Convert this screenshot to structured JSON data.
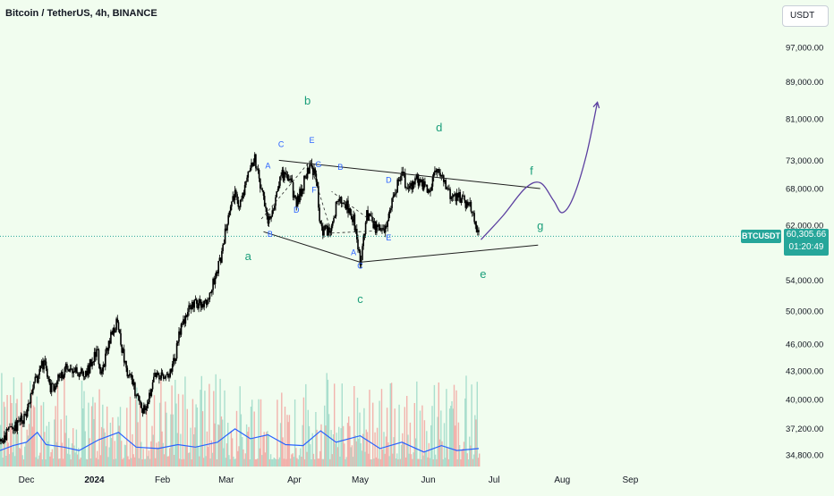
{
  "header": {
    "title": "Bitcoin / TetherUS, 4h, BINANCE",
    "currency": "USDT"
  },
  "price_tag": {
    "symbol": "BTCUSDT",
    "price": "60,305.66",
    "countdown": "01:20:49"
  },
  "colors": {
    "background": "#f1fdef",
    "candle": "#000000",
    "wave_label_green": "#1a9e7a",
    "wave_label_blue": "#2962ff",
    "projection": "#5b3fa0",
    "volume_up": "#9ed9c8",
    "volume_down": "#f2a6a1",
    "volume_ma": "#2962ff",
    "price_line": "#26a69a"
  },
  "chart_data": {
    "type": "candlestick",
    "title": "Bitcoin / TetherUS, 4h, BINANCE",
    "y_scale": "log",
    "ylim": [
      34000,
      103000
    ],
    "y_ticks": [
      "97,000.00",
      "89,000.00",
      "81,000.00",
      "73,000.00",
      "68,000.00",
      "62,000.00",
      "54,000.00",
      "50,000.00",
      "46,000.00",
      "43,000.00",
      "40,000.00",
      "37,200.00",
      "34,800.00"
    ],
    "y_tick_values": [
      97000,
      89000,
      81000,
      73000,
      68000,
      62000,
      54000,
      50000,
      46000,
      43000,
      40000,
      37200,
      34800
    ],
    "x_ticks": [
      "Dec",
      "2024",
      "Feb",
      "Mar",
      "Apr",
      "May",
      "Jun",
      "Jul",
      "Aug",
      "Sep"
    ],
    "x_tick_dates": [
      "2023-12-01",
      "2024-01-01",
      "2024-02-01",
      "2024-03-01",
      "2024-04-01",
      "2024-05-01",
      "2024-06-01",
      "2024-07-01",
      "2024-08-01",
      "2024-09-01"
    ],
    "xlim": [
      "2023-11-19",
      "2024-09-20"
    ],
    "last_price": 60305.66,
    "price_path": [
      [
        "2023-11-19",
        36000
      ],
      [
        "2023-12-01",
        38500
      ],
      [
        "2023-12-05",
        41800
      ],
      [
        "2023-12-09",
        44000
      ],
      [
        "2023-12-12",
        41000
      ],
      [
        "2023-12-20",
        43500
      ],
      [
        "2023-12-28",
        42500
      ],
      [
        "2024-01-02",
        45500
      ],
      [
        "2024-01-04",
        42500
      ],
      [
        "2024-01-08",
        46500
      ],
      [
        "2024-01-11",
        48500
      ],
      [
        "2024-01-16",
        43000
      ],
      [
        "2024-01-23",
        38800
      ],
      [
        "2024-01-29",
        42500
      ],
      [
        "2024-02-05",
        42600
      ],
      [
        "2024-02-09",
        47500
      ],
      [
        "2024-02-13",
        50500
      ],
      [
        "2024-02-22",
        51500
      ],
      [
        "2024-02-28",
        57500
      ],
      [
        "2024-03-01",
        62000
      ],
      [
        "2024-03-05",
        67500
      ],
      [
        "2024-03-07",
        64500
      ],
      [
        "2024-03-11",
        71500
      ],
      [
        "2024-03-14",
        73500
      ],
      [
        "2024-03-17",
        68000
      ],
      [
        "2024-03-20",
        61800
      ],
      [
        "2024-03-26",
        70500
      ],
      [
        "2024-03-30",
        69500
      ],
      [
        "2024-04-02",
        65500
      ],
      [
        "2024-04-08",
        72000
      ],
      [
        "2024-04-11",
        70000
      ],
      [
        "2024-04-13",
        61500
      ],
      [
        "2024-04-17",
        60800
      ],
      [
        "2024-04-20",
        65000
      ],
      [
        "2024-04-23",
        66500
      ],
      [
        "2024-04-28",
        63000
      ],
      [
        "2024-05-01",
        56500
      ],
      [
        "2024-05-04",
        63500
      ],
      [
        "2024-05-08",
        61500
      ],
      [
        "2024-05-12",
        60800
      ],
      [
        "2024-05-15",
        65500
      ],
      [
        "2024-05-20",
        71000
      ],
      [
        "2024-05-23",
        67500
      ],
      [
        "2024-05-27",
        69500
      ],
      [
        "2024-06-01",
        67500
      ],
      [
        "2024-06-05",
        71500
      ],
      [
        "2024-06-07",
        70000
      ],
      [
        "2024-06-11",
        66500
      ],
      [
        "2024-06-15",
        66500
      ],
      [
        "2024-06-20",
        65000
      ],
      [
        "2024-06-24",
        60300
      ]
    ],
    "volume_ma": [
      [
        "2023-11-19",
        0.18
      ],
      [
        "2023-11-25",
        0.28
      ],
      [
        "2023-12-01",
        0.35
      ],
      [
        "2023-12-06",
        0.55
      ],
      [
        "2023-12-10",
        0.3
      ],
      [
        "2023-12-18",
        0.25
      ],
      [
        "2023-12-25",
        0.18
      ],
      [
        "2024-01-03",
        0.4
      ],
      [
        "2024-01-12",
        0.55
      ],
      [
        "2024-01-20",
        0.25
      ],
      [
        "2024-01-30",
        0.22
      ],
      [
        "2024-02-08",
        0.3
      ],
      [
        "2024-02-16",
        0.25
      ],
      [
        "2024-02-26",
        0.35
      ],
      [
        "2024-03-05",
        0.62
      ],
      [
        "2024-03-12",
        0.42
      ],
      [
        "2024-03-20",
        0.5
      ],
      [
        "2024-03-28",
        0.3
      ],
      [
        "2024-04-05",
        0.28
      ],
      [
        "2024-04-13",
        0.58
      ],
      [
        "2024-04-20",
        0.35
      ],
      [
        "2024-05-01",
        0.48
      ],
      [
        "2024-05-10",
        0.22
      ],
      [
        "2024-05-20",
        0.35
      ],
      [
        "2024-05-30",
        0.15
      ],
      [
        "2024-06-07",
        0.28
      ],
      [
        "2024-06-14",
        0.18
      ],
      [
        "2024-06-24",
        0.22
      ]
    ],
    "triangle_lines": [
      [
        [
          "2024-03-25",
          73000
        ],
        [
          "2024-07-22",
          68000
        ]
      ],
      [
        [
          "2024-03-18",
          61000
        ],
        [
          "2024-05-01",
          56500
        ]
      ],
      [
        [
          "2024-05-01",
          56500
        ],
        [
          "2024-07-21",
          59000
        ]
      ]
    ],
    "dashed_lines": [
      [
        [
          "2024-03-17",
          63000
        ],
        [
          "2024-04-08",
          72800
        ]
      ],
      [
        [
          "2024-04-08",
          72800
        ],
        [
          "2024-04-18",
          60800
        ]
      ],
      [
        [
          "2024-04-18",
          60800
        ],
        [
          "2024-05-12",
          61200
        ]
      ],
      [
        [
          "2024-05-12",
          61200
        ],
        [
          "2024-04-18",
          67500
        ]
      ]
    ],
    "projection": [
      [
        "2024-06-25",
        59800
      ],
      [
        "2024-07-05",
        63500
      ],
      [
        "2024-07-15",
        68000
      ],
      [
        "2024-07-22",
        69000
      ],
      [
        "2024-07-28",
        66000
      ],
      [
        "2024-08-01",
        64000
      ],
      [
        "2024-08-06",
        66500
      ],
      [
        "2024-08-12",
        74000
      ],
      [
        "2024-08-17",
        84500
      ]
    ],
    "wave_labels": [
      {
        "text": "b",
        "date": "2024-04-07",
        "price": 84000,
        "color": "green"
      },
      {
        "text": "d",
        "date": "2024-06-06",
        "price": 78500,
        "color": "green"
      },
      {
        "text": "a",
        "date": "2024-03-11",
        "price": 56800,
        "color": "green"
      },
      {
        "text": "c",
        "date": "2024-05-01",
        "price": 51000,
        "color": "green"
      },
      {
        "text": "e",
        "date": "2024-06-26",
        "price": 54300,
        "color": "green"
      },
      {
        "text": "f",
        "date": "2024-07-18",
        "price": 70400,
        "color": "green"
      },
      {
        "text": "g",
        "date": "2024-07-22",
        "price": 61300,
        "color": "green"
      },
      {
        "text": "C",
        "date": "2024-03-26",
        "price": 75500,
        "color": "blue"
      },
      {
        "text": "E",
        "date": "2024-04-09",
        "price": 76300,
        "color": "blue"
      },
      {
        "text": "A",
        "date": "2024-03-20",
        "price": 71500,
        "color": "blue"
      },
      {
        "text": "G",
        "date": "2024-04-12",
        "price": 71800,
        "color": "blue"
      },
      {
        "text": "B",
        "date": "2024-04-22",
        "price": 71300,
        "color": "blue"
      },
      {
        "text": "F",
        "date": "2024-04-10",
        "price": 67300,
        "color": "blue"
      },
      {
        "text": "D",
        "date": "2024-05-14",
        "price": 69000,
        "color": "blue"
      },
      {
        "text": "D",
        "date": "2024-04-02",
        "price": 64000,
        "color": "blue"
      },
      {
        "text": "B",
        "date": "2024-03-21",
        "price": 60200,
        "color": "blue"
      },
      {
        "text": "A",
        "date": "2024-04-28",
        "price": 57500,
        "color": "blue"
      },
      {
        "text": "E",
        "date": "2024-05-14",
        "price": 59700,
        "color": "blue"
      },
      {
        "text": "C",
        "date": "2024-05-01",
        "price": 55600,
        "color": "blue"
      }
    ]
  }
}
